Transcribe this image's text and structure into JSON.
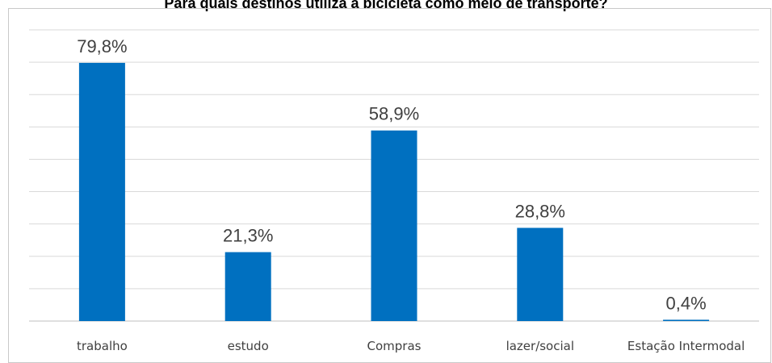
{
  "chart_data": {
    "type": "bar",
    "title": "Para quais destinos utiliza a bicicleta como meio de transporte?",
    "categories": [
      "trabalho",
      "estudo",
      "Compras",
      "lazer/social",
      "Estação Intermodal"
    ],
    "values": [
      79.8,
      21.3,
      58.9,
      28.8,
      0.4
    ],
    "value_labels": [
      "79,8%",
      "21,3%",
      "58,9%",
      "28,8%",
      "0,4%"
    ],
    "xlabel": "",
    "ylabel": "",
    "ylim": [
      0,
      90
    ],
    "grid": true,
    "legend": "none",
    "colors": {
      "bar": "#0070c0",
      "grid": "#d9d9d9",
      "text": "#404040"
    }
  }
}
